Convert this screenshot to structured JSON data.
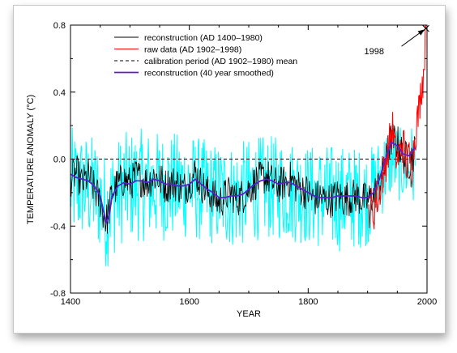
{
  "chart_data": {
    "type": "line",
    "title": "",
    "xlabel": "YEAR",
    "ylabel": "TEMPERATURE ANOMALY (°C)",
    "xlim": [
      1400,
      2000
    ],
    "ylim": [
      -0.8,
      0.8
    ],
    "x_ticks": [
      "1400",
      "1600",
      "1800",
      "2000"
    ],
    "y_ticks": [
      "-0.8",
      "-0.4",
      "0.0",
      "0.4",
      "0.8"
    ],
    "grid": false,
    "legend_position": "top-center",
    "annotation": {
      "text": "1998",
      "x": 1998,
      "y": 0.78
    },
    "colors": {
      "uncertainty": "#00ffff",
      "reconstruction": "#000000",
      "raw": "#ff0000",
      "smoothed": "#5a1fd0",
      "mean": "#000000"
    },
    "series": [
      {
        "name": "reconstruction (AD 1400–1980)",
        "style": "black-line",
        "x": [
          1400,
          1410,
          1420,
          1430,
          1440,
          1450,
          1455,
          1460,
          1465,
          1470,
          1480,
          1490,
          1500,
          1510,
          1520,
          1530,
          1540,
          1550,
          1560,
          1570,
          1580,
          1590,
          1600,
          1610,
          1620,
          1630,
          1640,
          1650,
          1660,
          1670,
          1680,
          1690,
          1700,
          1710,
          1720,
          1730,
          1740,
          1750,
          1760,
          1770,
          1780,
          1790,
          1800,
          1810,
          1820,
          1830,
          1840,
          1850,
          1860,
          1870,
          1880,
          1890,
          1900,
          1910,
          1920,
          1930,
          1940,
          1950,
          1960,
          1970,
          1980
        ],
        "y": [
          -0.12,
          -0.08,
          -0.15,
          -0.1,
          -0.18,
          -0.25,
          -0.32,
          -0.38,
          -0.3,
          -0.2,
          -0.15,
          -0.12,
          -0.15,
          -0.1,
          -0.12,
          -0.14,
          -0.1,
          -0.12,
          -0.16,
          -0.14,
          -0.15,
          -0.18,
          -0.14,
          -0.08,
          -0.15,
          -0.2,
          -0.22,
          -0.26,
          -0.22,
          -0.2,
          -0.24,
          -0.22,
          -0.18,
          -0.14,
          -0.12,
          -0.1,
          -0.14,
          -0.16,
          -0.14,
          -0.12,
          -0.16,
          -0.18,
          -0.2,
          -0.24,
          -0.22,
          -0.25,
          -0.24,
          -0.22,
          -0.24,
          -0.23,
          -0.22,
          -0.24,
          -0.25,
          -0.22,
          -0.15,
          -0.02,
          0.12,
          0.1,
          0.02,
          -0.02,
          0.05
        ]
      },
      {
        "name": "raw data (AD 1902–1998)",
        "style": "red-line",
        "x": [
          1902,
          1906,
          1910,
          1914,
          1918,
          1922,
          1926,
          1930,
          1934,
          1938,
          1942,
          1946,
          1950,
          1954,
          1958,
          1962,
          1966,
          1970,
          1974,
          1978,
          1982,
          1986,
          1990,
          1994,
          1998
        ],
        "y": [
          -0.3,
          -0.28,
          -0.34,
          -0.22,
          -0.26,
          -0.15,
          -0.1,
          -0.04,
          0.05,
          0.12,
          0.18,
          0.06,
          -0.02,
          0.04,
          0.1,
          0.06,
          -0.04,
          0.02,
          -0.06,
          0.08,
          0.2,
          0.28,
          0.42,
          0.5,
          0.78
        ]
      },
      {
        "name": "calibration period (AD 1902–1980) mean",
        "style": "dashed",
        "x": [
          1400,
          2000
        ],
        "y": [
          0.0,
          0.0
        ]
      },
      {
        "name": "reconstruction (40 year smoothed)",
        "style": "smooth",
        "x": [
          1400,
          1410,
          1420,
          1430,
          1440,
          1450,
          1455,
          1460,
          1465,
          1470,
          1480,
          1490,
          1500,
          1510,
          1520,
          1530,
          1540,
          1550,
          1560,
          1570,
          1580,
          1590,
          1600,
          1610,
          1620,
          1630,
          1640,
          1650,
          1660,
          1670,
          1680,
          1690,
          1700,
          1710,
          1720,
          1730,
          1740,
          1750,
          1760,
          1770,
          1780,
          1790,
          1800,
          1810,
          1820,
          1830,
          1840,
          1850,
          1860,
          1870,
          1880,
          1890,
          1900,
          1910,
          1920,
          1930,
          1940,
          1950,
          1960,
          1970,
          1980
        ],
        "y": [
          -0.09,
          -0.11,
          -0.12,
          -0.13,
          -0.16,
          -0.22,
          -0.3,
          -0.38,
          -0.34,
          -0.22,
          -0.16,
          -0.14,
          -0.15,
          -0.13,
          -0.13,
          -0.14,
          -0.12,
          -0.13,
          -0.15,
          -0.15,
          -0.16,
          -0.16,
          -0.15,
          -0.12,
          -0.15,
          -0.18,
          -0.2,
          -0.23,
          -0.23,
          -0.22,
          -0.22,
          -0.21,
          -0.18,
          -0.15,
          -0.13,
          -0.12,
          -0.13,
          -0.15,
          -0.14,
          -0.14,
          -0.16,
          -0.18,
          -0.2,
          -0.22,
          -0.23,
          -0.23,
          -0.23,
          -0.22,
          -0.22,
          -0.22,
          -0.22,
          -0.23,
          -0.23,
          -0.2,
          -0.12,
          0.0,
          0.1,
          0.08,
          0.03,
          0.02,
          0.07
        ]
      }
    ],
    "uncertainty_band": {
      "x": [
        1400,
        1420,
        1440,
        1450,
        1460,
        1470,
        1490,
        1520,
        1560,
        1600,
        1640,
        1680,
        1720,
        1760,
        1800,
        1840,
        1880,
        1900,
        1920,
        1940,
        1960,
        1980
      ],
      "upper": [
        0.15,
        0.12,
        0.1,
        0.05,
        -0.02,
        0.05,
        0.12,
        0.14,
        0.12,
        0.12,
        0.06,
        0.06,
        0.1,
        0.1,
        0.05,
        0.05,
        0.04,
        0.02,
        0.1,
        0.22,
        0.14,
        0.2
      ],
      "lower": [
        -0.45,
        -0.45,
        -0.48,
        -0.52,
        -0.62,
        -0.55,
        -0.45,
        -0.45,
        -0.45,
        -0.44,
        -0.48,
        -0.5,
        -0.44,
        -0.45,
        -0.48,
        -0.52,
        -0.5,
        -0.48,
        -0.34,
        -0.2,
        -0.24,
        -0.28
      ]
    }
  }
}
